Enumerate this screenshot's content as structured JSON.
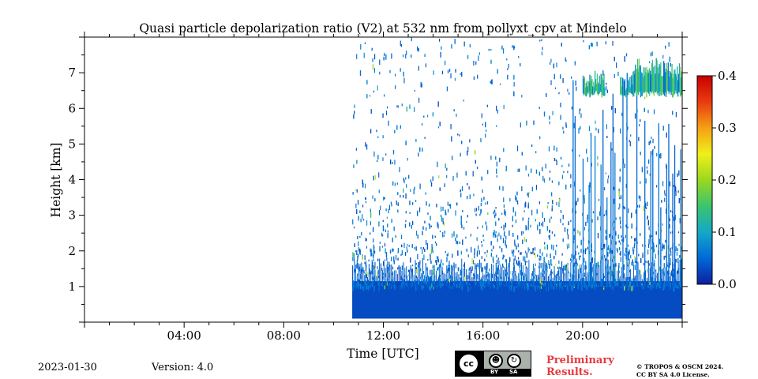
{
  "chart_data": {
    "type": "heatmap",
    "title": "Quasi particle depolarization ratio (V2) at 532 nm from pollyxt_cpv at Mindelo",
    "xlabel": "Time [UTC]",
    "ylabel": "Height [km]",
    "x_range_hours": [
      0,
      24
    ],
    "ylim": [
      0,
      8
    ],
    "x_ticks": [
      {
        "hour": 4,
        "label": "04:00"
      },
      {
        "hour": 8,
        "label": "08:00"
      },
      {
        "hour": 12,
        "label": "12:00"
      },
      {
        "hour": 16,
        "label": "16:00"
      },
      {
        "hour": 20,
        "label": "20:00"
      }
    ],
    "y_ticks": [
      {
        "value": 1,
        "label": "1"
      },
      {
        "value": 2,
        "label": "2"
      },
      {
        "value": 3,
        "label": "3"
      },
      {
        "value": 4,
        "label": "4"
      },
      {
        "value": 5,
        "label": "5"
      },
      {
        "value": 6,
        "label": "6"
      },
      {
        "value": 7,
        "label": "7"
      }
    ],
    "colorbar": {
      "range": [
        0.0,
        0.4
      ],
      "ticks": [
        {
          "value": 0.0,
          "label": "0.0"
        },
        {
          "value": 0.1,
          "label": "0.1"
        },
        {
          "value": 0.2,
          "label": "0.2"
        },
        {
          "value": 0.3,
          "label": "0.3"
        },
        {
          "value": 0.4,
          "label": "0.4"
        }
      ],
      "colors": [
        "#0d1f9e",
        "#0069d8",
        "#14a8c8",
        "#3bc46e",
        "#9ad81e",
        "#f0f01a",
        "#f5a014",
        "#e83b0f",
        "#c80000"
      ]
    },
    "data_start_hour": 10.75,
    "regions": [
      {
        "name": "boundary-layer",
        "t_start": 10.75,
        "t_end": 24,
        "h_bottom": 0.1,
        "h_top": 1.0,
        "value": 0.03
      },
      {
        "name": "sparse-noise",
        "t_start": 10.75,
        "t_end": 24,
        "h_bottom": 1.0,
        "h_top": 8.0,
        "value": 0.05
      },
      {
        "name": "cloud-layer",
        "t_start": 20.0,
        "t_end": 24,
        "h_bottom": 6.3,
        "h_top": 7.2,
        "value": 0.12
      }
    ]
  },
  "footer": {
    "date": "2023-01-30",
    "version": "Version: 4.0",
    "preliminary_line1": "Preliminary",
    "preliminary_line2": "Results.",
    "copyright_line1": "© TROPOS & OSCM 2024.",
    "copyright_line2": "CC BY SA 4.0 License.",
    "license_badge": {
      "cc": "cc",
      "by": "BY",
      "sa": "SA"
    }
  }
}
